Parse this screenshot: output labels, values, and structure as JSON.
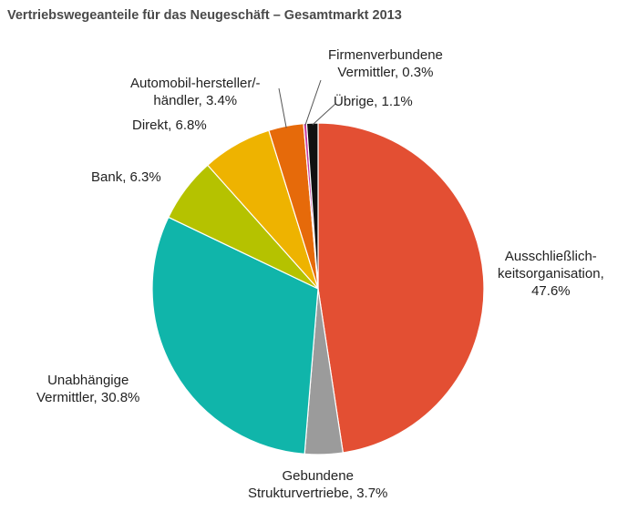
{
  "chart_data": {
    "type": "pie",
    "title": "Vertriebswegeanteile für das Neugeschäft – Gesamtmarkt 2013",
    "slices": [
      {
        "label_lines": [
          "Ausschließlich-",
          "keitsorganisation,",
          "47.6%"
        ],
        "value": 47.6,
        "color": "#e34f33"
      },
      {
        "label_lines": [
          "Gebundene",
          "Strukturvertriebe,  3.7%"
        ],
        "value": 3.7,
        "color": "#9b9b9b"
      },
      {
        "label_lines": [
          "Unabhängige",
          "Vermittler, 30.8%"
        ],
        "value": 30.8,
        "color": "#10b5aa"
      },
      {
        "label_lines": [
          "Bank, 6.3%"
        ],
        "value": 6.3,
        "color": "#b5c200"
      },
      {
        "label_lines": [
          "Direkt, 6.8%"
        ],
        "value": 6.8,
        "color": "#eeb300"
      },
      {
        "label_lines": [
          "Automobil-hersteller/-",
          "händler, 3.4%"
        ],
        "value": 3.4,
        "color": "#e66a0a"
      },
      {
        "label_lines": [
          "Firmenverbundene",
          "Vermittler, 0.3%"
        ],
        "value": 0.3,
        "color": "#c33aa0"
      },
      {
        "label_lines": [
          "Übrige, 1.1%"
        ],
        "value": 1.1,
        "color": "#111111"
      }
    ]
  }
}
